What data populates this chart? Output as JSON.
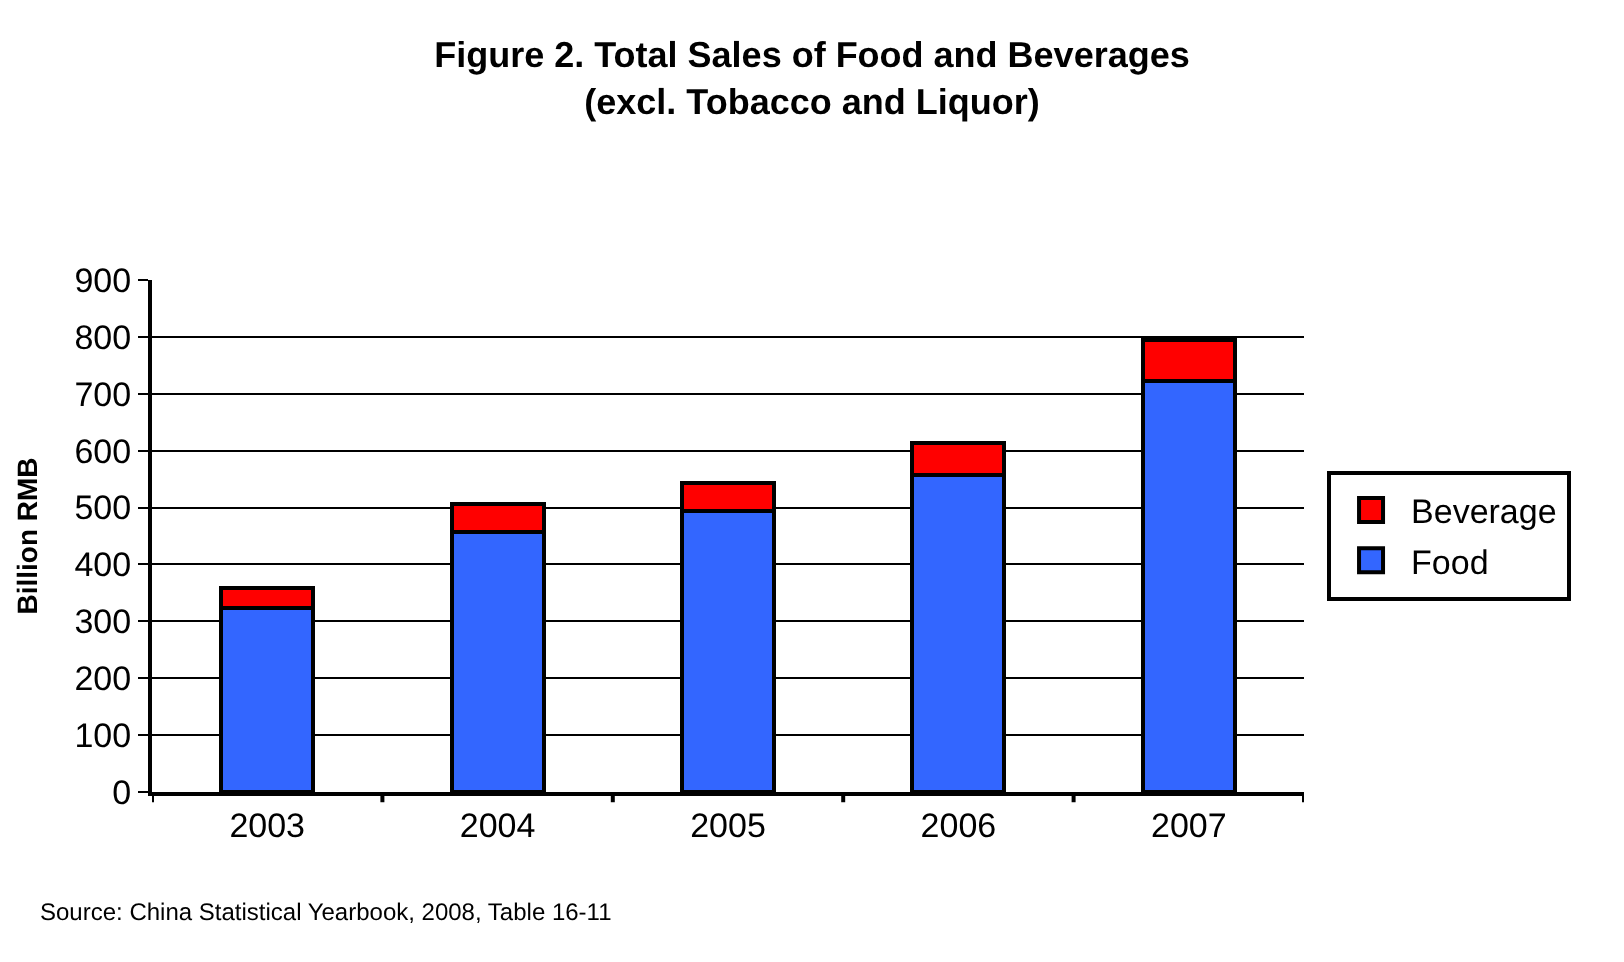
{
  "chart_data": {
    "type": "bar",
    "title": "Figure 2. Total Sales of Food and Beverages\n(excl. Tobacco and Liquor)",
    "ylabel": "Billion RMB",
    "categories": [
      "2003",
      "2004",
      "2005",
      "2006",
      "2007"
    ],
    "series": [
      {
        "name": "Food",
        "color": "#3366ff",
        "values": [
          323,
          457,
          494,
          557,
          723
        ]
      },
      {
        "name": "Beverage",
        "color": "#ff0000",
        "values": [
          35,
          50,
          49,
          57,
          71
        ]
      }
    ],
    "stacked": true,
    "ylim": [
      0,
      900
    ],
    "yticks": [
      0,
      100,
      200,
      300,
      400,
      500,
      600,
      700,
      800,
      900
    ],
    "grid": "y",
    "legend": "right",
    "annotations": [
      "Source: China Statistical Yearbook, 2008, Table 16-11"
    ]
  }
}
